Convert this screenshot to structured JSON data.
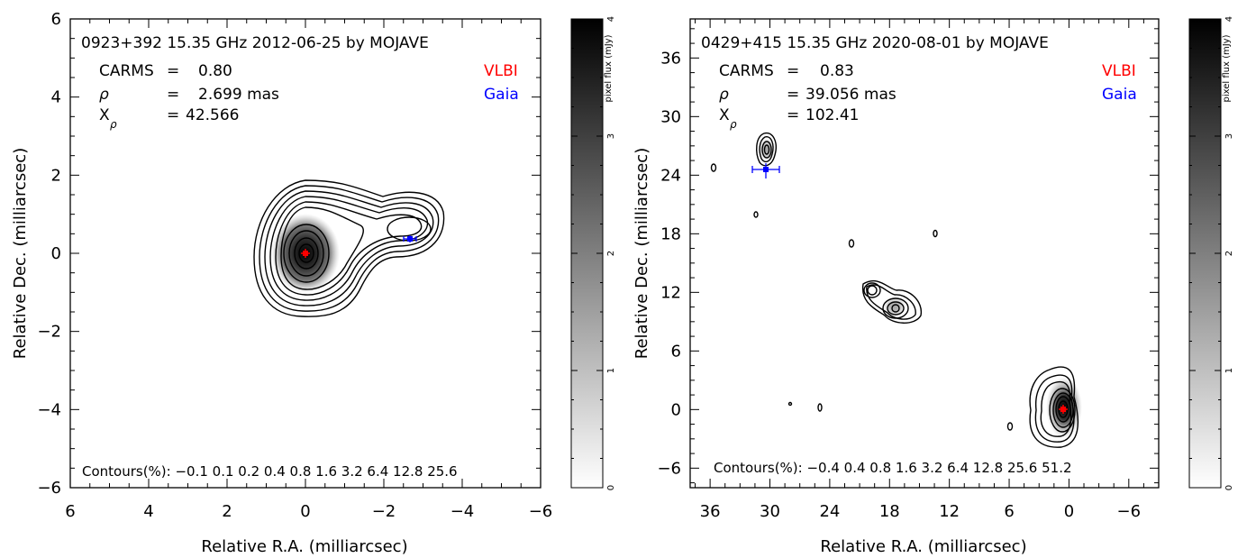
{
  "chart_data": [
    {
      "type": "heatmap",
      "title": "0923+392 15.35 GHz 2012-06-25 by MOJAVE",
      "xlabel": "Relative R.A. (milliarcsec)",
      "ylabel": "Relative Dec. (milliarcsec)",
      "xlim": [
        6,
        -6
      ],
      "ylim": [
        -6,
        6
      ],
      "x_ticks": [
        "6",
        "4",
        "2",
        "0",
        "−2",
        "−4",
        "−6"
      ],
      "y_ticks": [
        "−6",
        "−4",
        "−2",
        "0",
        "2",
        "4",
        "6"
      ],
      "stats": [
        {
          "name": "CARMS",
          "eq": "=",
          "value": "0.80"
        },
        {
          "name": "ρ",
          "eq": "=",
          "value": "2.699 mas"
        },
        {
          "name": "X",
          "sub": "ρ",
          "eq": "=",
          "value": "42.566"
        }
      ],
      "legend": [
        {
          "label": "VLBI",
          "color": "#ff0000"
        },
        {
          "label": "Gaia",
          "color": "#0000ff"
        }
      ],
      "contours_text": "Contours(%):  −0.1  0.1  0.2  0.4  0.8  1.6  3.2  6.4  12.8  25.6",
      "contour_levels": [
        -0.1,
        0.1,
        0.2,
        0.4,
        0.8,
        1.6,
        3.2,
        6.4,
        12.8,
        25.6
      ],
      "vlbi_position": {
        "x": 0,
        "y": 0
      },
      "gaia_position": {
        "x": -2.7,
        "y": 0.38,
        "x_err": 0.3,
        "y_err": 0.12
      },
      "components": [
        {
          "x": 0,
          "y": 0,
          "peak_mJy": 4.0
        },
        {
          "x": -2.7,
          "y": 0.4,
          "peak_mJy": 0.05
        }
      ],
      "colorbar": {
        "label": "pixel flux (mJy)",
        "range": [
          0,
          4
        ],
        "ticks": [
          "0",
          "1",
          "2",
          "3",
          "4"
        ]
      }
    },
    {
      "type": "heatmap",
      "title": "0429+415 15.35 GHz 2020-08-01 by MOJAVE",
      "xlabel": "Relative R.A. (milliarcsec)",
      "ylabel": "Relative Dec. (milliarcsec)",
      "xlim": [
        38,
        -9
      ],
      "ylim": [
        -8,
        40
      ],
      "x_ticks": [
        "36",
        "30",
        "24",
        "18",
        "12",
        "6",
        "0",
        "−6"
      ],
      "y_ticks": [
        "−6",
        "0",
        "6",
        "12",
        "18",
        "24",
        "30",
        "36"
      ],
      "stats": [
        {
          "name": "CARMS",
          "eq": "=",
          "value": "0.83"
        },
        {
          "name": "ρ",
          "eq": "=",
          "value": "39.056 mas"
        },
        {
          "name": "X",
          "sub": "ρ",
          "eq": "=",
          "value": "102.41"
        }
      ],
      "legend": [
        {
          "label": "VLBI",
          "color": "#ff0000"
        },
        {
          "label": "Gaia",
          "color": "#0000ff"
        }
      ],
      "contours_text": "Contours(%):  −0.4  0.4  0.8  1.6  3.2  6.4  12.8  25.6  51.2",
      "contour_levels": [
        -0.4,
        0.4,
        0.8,
        1.6,
        3.2,
        6.4,
        12.8,
        25.6,
        51.2
      ],
      "vlbi_position": {
        "x": 0,
        "y": 0
      },
      "gaia_position": {
        "x": 30.3,
        "y": 24.4,
        "x_err": 1.4,
        "y_err": 0.7
      },
      "components": [
        {
          "x": 0,
          "y": 0.3,
          "peak_mJy": 4.0
        },
        {
          "x": 17.5,
          "y": 10.2,
          "peak_mJy": 0.3
        },
        {
          "x": 20.2,
          "y": 12.2,
          "peak_mJy": 0.2
        },
        {
          "x": 30.5,
          "y": 26.8,
          "peak_mJy": 0.2
        }
      ],
      "colorbar": {
        "label": "pixel flux (mJy)",
        "range": [
          0,
          4
        ],
        "ticks": [
          "0",
          "1",
          "2",
          "3",
          "4"
        ]
      }
    }
  ]
}
